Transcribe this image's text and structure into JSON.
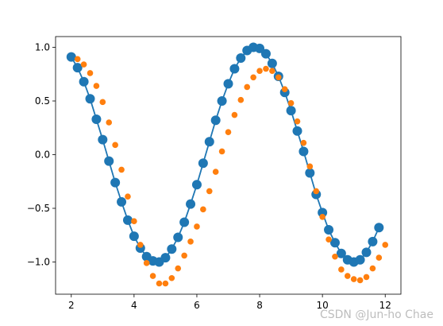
{
  "chart_data": {
    "type": "line",
    "xlim": [
      1.5,
      12.5
    ],
    "ylim": [
      -1.3,
      1.1
    ],
    "xticks": [
      2,
      4,
      6,
      8,
      10,
      12
    ],
    "xtick_labels": [
      "2",
      "4",
      "6",
      "8",
      "10",
      "12"
    ],
    "yticks": [
      -1.0,
      -0.5,
      0.0,
      0.5,
      1.0
    ],
    "ytick_labels": [
      "−1.0",
      "−0.5",
      "0.0",
      "0.5",
      "1.0"
    ],
    "grid": false,
    "series": [
      {
        "style": "line+markers",
        "color": "#1f77b4",
        "x": [
          2.0,
          2.2,
          2.4,
          2.6,
          2.8,
          3.0,
          3.2,
          3.4,
          3.6,
          3.8,
          4.0,
          4.2,
          4.4,
          4.6,
          4.8,
          5.0,
          5.2,
          5.4,
          5.6,
          5.8,
          6.0,
          6.2,
          6.4,
          6.6,
          6.8,
          7.0,
          7.2,
          7.4,
          7.6,
          7.8,
          8.0,
          8.2,
          8.4,
          8.6,
          8.8,
          9.0,
          9.2,
          9.4,
          9.6,
          9.8,
          10.0,
          10.2,
          10.4,
          10.6,
          10.8,
          11.0,
          11.2,
          11.4,
          11.6,
          11.8
        ],
        "y": [
          0.91,
          0.81,
          0.68,
          0.52,
          0.33,
          0.14,
          -0.06,
          -0.26,
          -0.44,
          -0.61,
          -0.76,
          -0.87,
          -0.95,
          -0.99,
          -1.0,
          -0.96,
          -0.88,
          -0.77,
          -0.63,
          -0.46,
          -0.28,
          -0.08,
          0.12,
          0.32,
          0.5,
          0.66,
          0.8,
          0.9,
          0.97,
          1.0,
          0.99,
          0.94,
          0.85,
          0.73,
          0.58,
          0.41,
          0.22,
          0.03,
          -0.17,
          -0.37,
          -0.54,
          -0.7,
          -0.82,
          -0.92,
          -0.98,
          -1.0,
          -0.98,
          -0.91,
          -0.81,
          -0.68
        ]
      },
      {
        "style": "markers",
        "color": "#ff7f0e",
        "x": [
          2.2,
          2.4,
          2.6,
          2.8,
          3.0,
          3.2,
          3.4,
          3.6,
          3.8,
          4.0,
          4.2,
          4.4,
          4.6,
          4.8,
          5.0,
          5.2,
          5.4,
          5.6,
          5.8,
          6.0,
          6.2,
          6.4,
          6.6,
          6.8,
          7.0,
          7.2,
          7.4,
          7.6,
          7.8,
          8.0,
          8.2,
          8.4,
          8.6,
          8.8,
          9.0,
          9.2,
          9.4,
          9.6,
          9.8,
          10.0,
          10.2,
          10.4,
          10.6,
          10.8,
          11.0,
          11.2,
          11.4,
          11.6,
          11.8,
          12.0
        ],
        "y": [
          0.89,
          0.84,
          0.76,
          0.64,
          0.49,
          0.3,
          0.09,
          -0.14,
          -0.39,
          -0.62,
          -0.84,
          -1.01,
          -1.13,
          -1.2,
          -1.2,
          -1.15,
          -1.06,
          -0.94,
          -0.81,
          -0.67,
          -0.51,
          -0.34,
          -0.16,
          0.03,
          0.21,
          0.37,
          0.51,
          0.63,
          0.72,
          0.78,
          0.8,
          0.78,
          0.72,
          0.61,
          0.48,
          0.31,
          0.11,
          -0.11,
          -0.34,
          -0.58,
          -0.79,
          -0.95,
          -1.07,
          -1.13,
          -1.16,
          -1.17,
          -1.14,
          -1.06,
          -0.96,
          -0.84
        ]
      }
    ]
  },
  "watermark": "CSDN @Jun-ho Chae"
}
